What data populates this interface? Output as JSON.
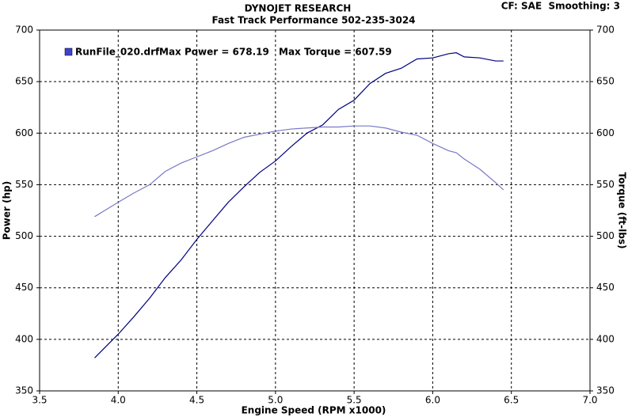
{
  "chart_data": {
    "type": "line",
    "title": "DYNOJET RESEARCH",
    "subtitle": "Fast Track Performance 502-235-3024",
    "corner_note": "CF: SAE  Smoothing: 3",
    "legend": {
      "label": "RunFile_020.drf",
      "color": "#4040d0"
    },
    "annotations": [
      "Max Power = 678.19",
      "Max Torque = 607.59"
    ],
    "xlabel": "Engine Speed (RPM x1000)",
    "ylabel": "Power (hp)",
    "y2label": "Torque (ft-lbs)",
    "x": [
      3.85,
      4.0,
      4.1,
      4.2,
      4.3,
      4.4,
      4.5,
      4.6,
      4.7,
      4.8,
      4.9,
      5.0,
      5.1,
      5.2,
      5.3,
      5.4,
      5.5,
      5.6,
      5.7,
      5.8,
      5.9,
      6.0,
      6.1,
      6.15,
      6.2,
      6.3,
      6.4,
      6.45
    ],
    "series": [
      {
        "color": "#000080",
        "values": [
          382,
          405,
          422,
          440,
          460,
          477,
          497,
          515,
          533,
          548,
          562,
          573,
          587,
          600,
          608,
          623,
          632,
          648,
          658,
          663,
          672,
          673,
          677,
          678,
          674,
          673,
          670,
          670
        ]
      },
      {
        "color": "#7878c8",
        "axis": "y2",
        "values": [
          519,
          533,
          542,
          550,
          563,
          571,
          577,
          583,
          590,
          596,
          599,
          602,
          604,
          605,
          606,
          606,
          607,
          607,
          605,
          601,
          598,
          590,
          583,
          581,
          575,
          565,
          552,
          545
        ]
      }
    ],
    "xlim": [
      3.5,
      7.0
    ],
    "xticks": [
      3.5,
      {
        "value": 4,
        "label": "4.0"
      },
      4.5,
      {
        "value": 5,
        "label": "5.0"
      },
      5.5,
      {
        "value": 6,
        "label": "6.0"
      },
      6.5,
      {
        "value": 7,
        "label": "7.0"
      }
    ],
    "ylim": [
      350,
      700
    ],
    "yticks": [
      350,
      400,
      450,
      500,
      550,
      600,
      650,
      700
    ],
    "y2lim": [
      350,
      700
    ],
    "y2ticks": [
      350,
      400,
      450,
      500,
      550,
      600,
      650,
      700
    ],
    "grid": true
  }
}
